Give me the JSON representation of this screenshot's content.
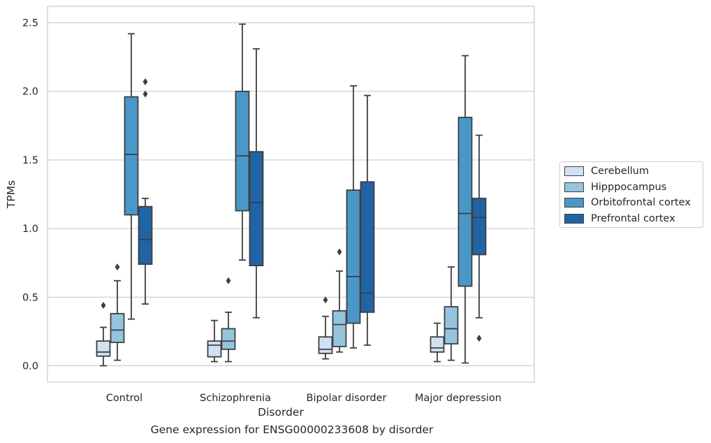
{
  "caption": "Gene expression for ENSG00000233608 by disorder",
  "chart_data": {
    "type": "boxplot",
    "title": "",
    "xlabel": "Disorder",
    "ylabel": "TPMs",
    "ylim": [
      -0.12,
      2.62
    ],
    "yticks": [
      "0.0",
      "0.5",
      "1.0",
      "1.5",
      "2.0",
      "2.5"
    ],
    "grid": "horizontal",
    "legend_position": "right",
    "categories": [
      "Control",
      "Schizophrenia",
      "Bipolar disorder",
      "Major depression"
    ],
    "series": [
      {
        "name": "Cerebellum",
        "color": "#d0e1f2",
        "boxes": [
          {
            "whislo": 0.0,
            "q1": 0.07,
            "med": 0.1,
            "q3": 0.18,
            "whishi": 0.28,
            "fliers": [
              0.44
            ]
          },
          {
            "whislo": 0.03,
            "q1": 0.065,
            "med": 0.15,
            "q3": 0.18,
            "whishi": 0.33,
            "fliers": []
          },
          {
            "whislo": 0.05,
            "q1": 0.09,
            "med": 0.12,
            "q3": 0.21,
            "whishi": 0.36,
            "fliers": [
              0.48
            ]
          },
          {
            "whislo": 0.03,
            "q1": 0.1,
            "med": 0.13,
            "q3": 0.21,
            "whishi": 0.31,
            "fliers": []
          }
        ]
      },
      {
        "name": "Hipppocampus",
        "color": "#94c4df",
        "boxes": [
          {
            "whislo": 0.04,
            "q1": 0.17,
            "med": 0.26,
            "q3": 0.38,
            "whishi": 0.62,
            "fliers": [
              0.72
            ]
          },
          {
            "whislo": 0.03,
            "q1": 0.12,
            "med": 0.18,
            "q3": 0.27,
            "whishi": 0.39,
            "fliers": [
              0.62
            ]
          },
          {
            "whislo": 0.1,
            "q1": 0.14,
            "med": 0.3,
            "q3": 0.4,
            "whishi": 0.69,
            "fliers": [
              0.83
            ]
          },
          {
            "whislo": 0.04,
            "q1": 0.16,
            "med": 0.27,
            "q3": 0.43,
            "whishi": 0.72,
            "fliers": []
          }
        ]
      },
      {
        "name": "Orbitofrontal cortex",
        "color": "#4a98c9",
        "boxes": [
          {
            "whislo": 0.34,
            "q1": 1.1,
            "med": 1.54,
            "q3": 1.96,
            "whishi": 2.42,
            "fliers": []
          },
          {
            "whislo": 0.77,
            "q1": 1.13,
            "med": 1.53,
            "q3": 2.0,
            "whishi": 2.49,
            "fliers": []
          },
          {
            "whislo": 0.13,
            "q1": 0.31,
            "med": 0.65,
            "q3": 1.28,
            "whishi": 2.04,
            "fliers": []
          },
          {
            "whislo": 0.02,
            "q1": 0.58,
            "med": 1.11,
            "q3": 1.81,
            "whishi": 2.26,
            "fliers": []
          }
        ]
      },
      {
        "name": "Prefrontal cortex",
        "color": "#2164a6",
        "boxes": [
          {
            "whislo": 0.45,
            "q1": 0.74,
            "med": 0.92,
            "q3": 1.16,
            "whishi": 1.22,
            "fliers": [
              1.98,
              2.07
            ]
          },
          {
            "whislo": 0.35,
            "q1": 0.73,
            "med": 1.19,
            "q3": 1.56,
            "whishi": 2.31,
            "fliers": []
          },
          {
            "whislo": 0.15,
            "q1": 0.39,
            "med": 0.53,
            "q3": 1.34,
            "whishi": 1.97,
            "fliers": []
          },
          {
            "whislo": 0.35,
            "q1": 0.81,
            "med": 1.08,
            "q3": 1.22,
            "whishi": 1.68,
            "fliers": [
              0.2
            ]
          }
        ]
      }
    ]
  }
}
